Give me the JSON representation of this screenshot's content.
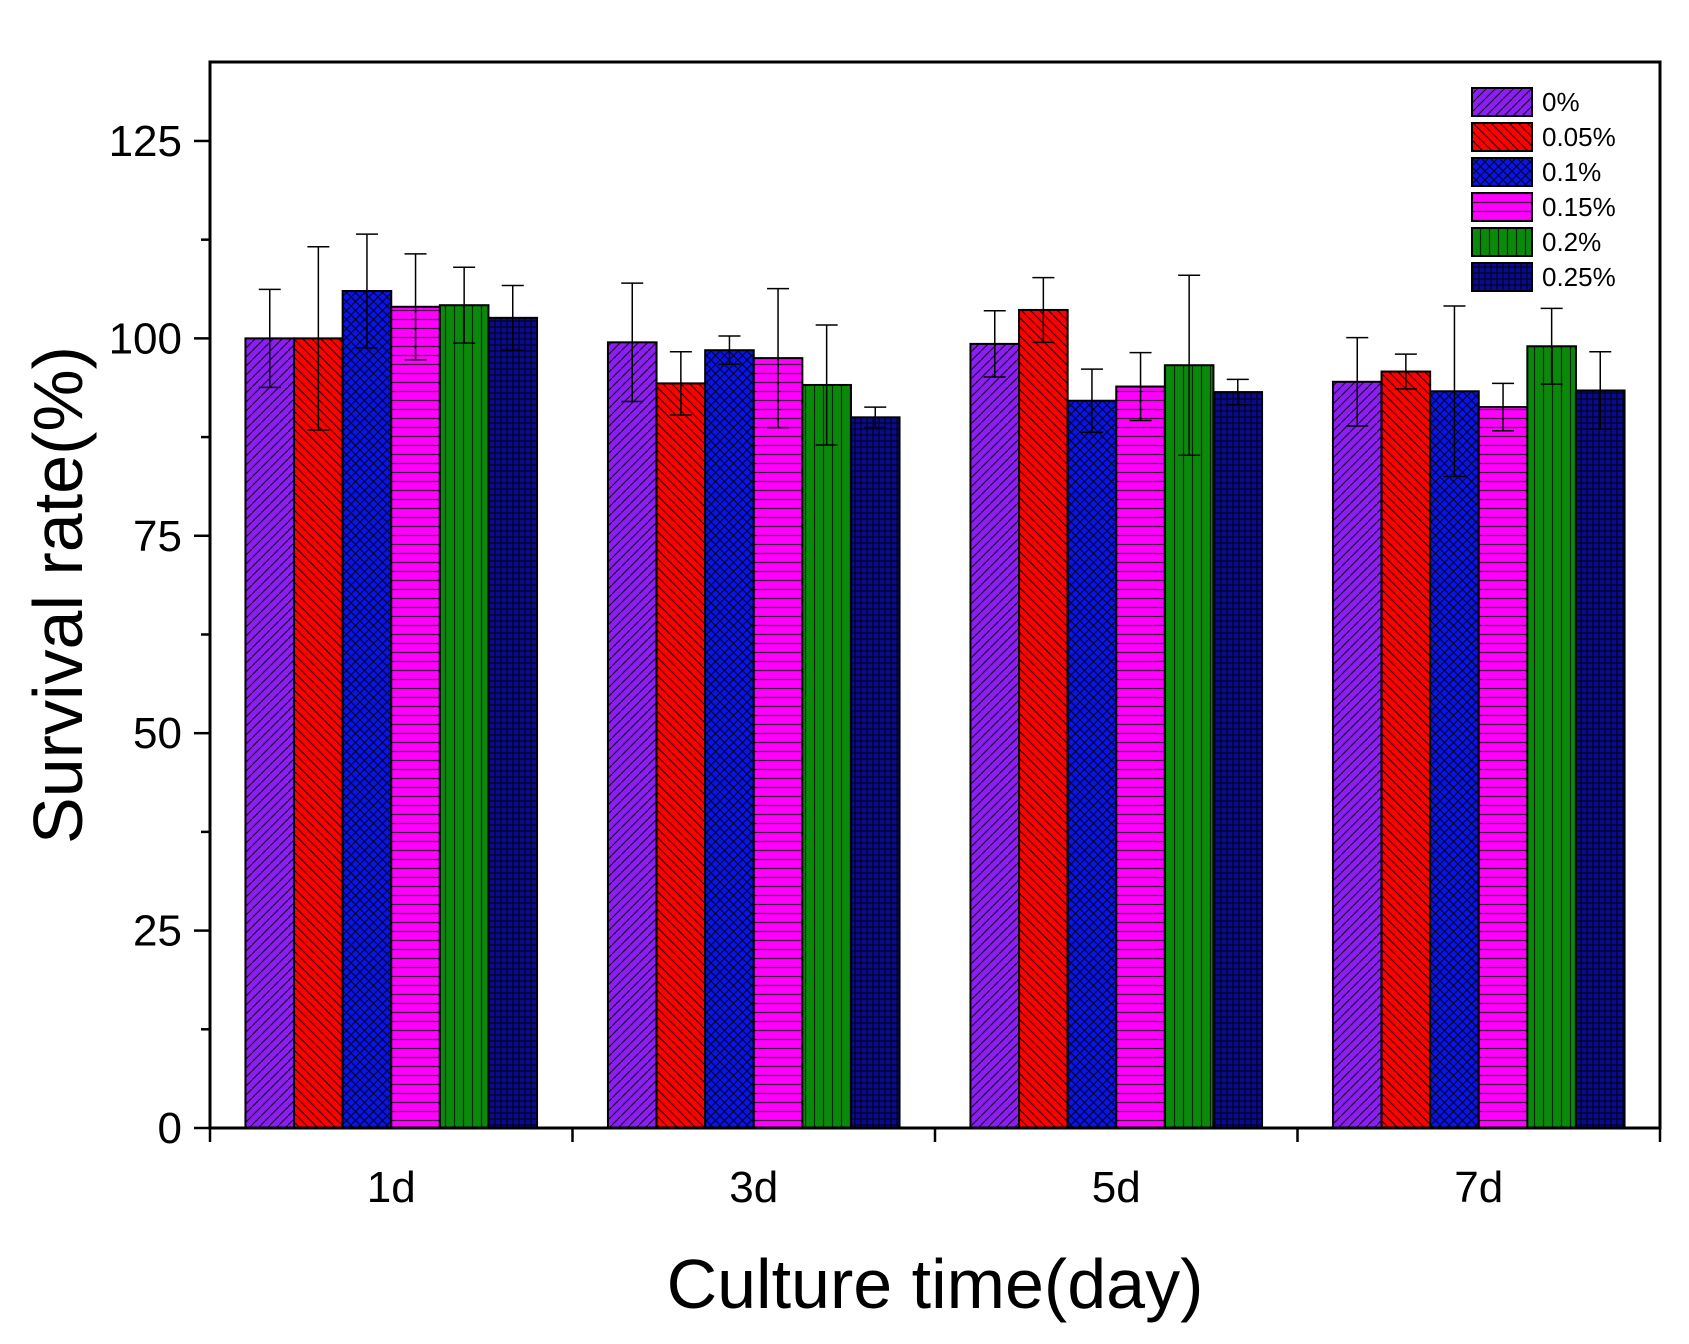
{
  "chart_data": {
    "type": "bar",
    "title": "",
    "xlabel": "Culture time(day)",
    "ylabel": "Survival rate(%)",
    "ylim": [
      0,
      135
    ],
    "yticks": [
      0,
      25,
      50,
      75,
      100,
      125
    ],
    "yticklabels": [
      "0",
      "25",
      "50",
      "75",
      "100",
      "125"
    ],
    "categories": [
      "1d",
      "3d",
      "5d",
      "7d"
    ],
    "legend_position": "top-right",
    "series": [
      {
        "name": "0%",
        "color": "#8b1ff0",
        "pattern": "diag-up",
        "values": [
          100,
          99.5,
          99.3,
          94.5
        ],
        "errors": [
          6.2,
          7.5,
          4.2,
          5.6
        ]
      },
      {
        "name": "0.05%",
        "color": "#ff0000",
        "pattern": "diag-down",
        "values": [
          100,
          94.3,
          103.6,
          95.8
        ],
        "errors": [
          11.6,
          4.0,
          4.1,
          2.2
        ]
      },
      {
        "name": "0.1%",
        "color": "#0a14e6",
        "pattern": "cross",
        "values": [
          106,
          98.5,
          92.1,
          93.3
        ],
        "errors": [
          7.2,
          1.8,
          4.0,
          10.8
        ]
      },
      {
        "name": "0.15%",
        "color": "#ff00ff",
        "pattern": "horiz",
        "values": [
          104,
          97.5,
          93.9,
          91.3
        ],
        "errors": [
          6.7,
          8.8,
          4.3,
          3.0
        ]
      },
      {
        "name": "0.2%",
        "color": "#0a8a0a",
        "pattern": "vert",
        "values": [
          104.2,
          94.1,
          96.6,
          99.0
        ],
        "errors": [
          4.8,
          7.6,
          11.4,
          4.8
        ]
      },
      {
        "name": "0.25%",
        "color": "#0a0a8c",
        "pattern": "grid",
        "values": [
          102.6,
          90.0,
          93.2,
          93.4
        ],
        "errors": [
          4.1,
          1.3,
          1.6,
          4.9
        ]
      }
    ]
  }
}
